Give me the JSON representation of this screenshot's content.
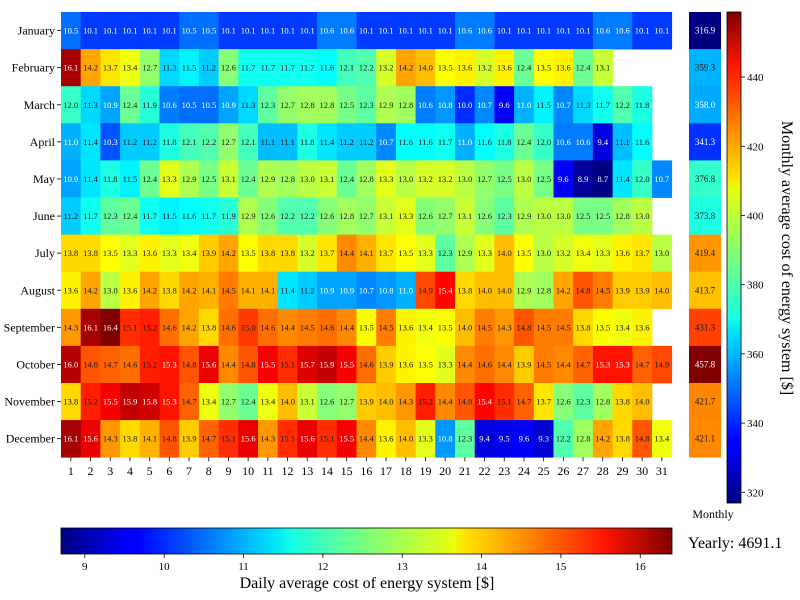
{
  "chart_data": {
    "type": "heatmap",
    "rows": [
      "January",
      "February",
      "March",
      "April",
      "May",
      "June",
      "July",
      "August",
      "September",
      "October",
      "November",
      "December"
    ],
    "columns": [
      "1",
      "2",
      "3",
      "4",
      "5",
      "6",
      "7",
      "8",
      "9",
      "10",
      "11",
      "12",
      "13",
      "14",
      "15",
      "16",
      "17",
      "18",
      "19",
      "20",
      "21",
      "22",
      "23",
      "24",
      "25",
      "26",
      "27",
      "28",
      "29",
      "30",
      "31"
    ],
    "values": [
      [
        10.5,
        10.1,
        10.1,
        10.1,
        10.1,
        10.1,
        10.5,
        10.5,
        10.1,
        10.1,
        10.1,
        10.1,
        10.1,
        10.6,
        10.6,
        10.1,
        10.1,
        10.1,
        10.1,
        10.1,
        10.6,
        10.6,
        10.1,
        10.1,
        10.1,
        10.1,
        10.1,
        10.6,
        10.6,
        10.1,
        10.1
      ],
      [
        16.1,
        14.2,
        13.7,
        13.4,
        12.7,
        11.3,
        11.5,
        11.2,
        12.6,
        11.7,
        11.7,
        11.7,
        11.7,
        11.6,
        12.1,
        12.2,
        13.2,
        14.2,
        14.0,
        13.5,
        13.6,
        13.2,
        13.6,
        12.4,
        13.5,
        13.6,
        12.4,
        13.1,
        null,
        null,
        null
      ],
      [
        12.0,
        11.3,
        10.9,
        12.4,
        11.9,
        10.6,
        10.5,
        10.5,
        10.9,
        11.3,
        12.3,
        12.7,
        12.8,
        12.8,
        12.5,
        12.3,
        12.9,
        12.8,
        10.6,
        10.8,
        10.0,
        10.7,
        9.6,
        11.0,
        11.5,
        10.7,
        11.3,
        11.7,
        12.2,
        11.8,
        null
      ],
      [
        11.0,
        11.4,
        10.3,
        11.2,
        11.2,
        11.8,
        12.1,
        12.2,
        12.7,
        12.1,
        11.1,
        11.1,
        11.8,
        11.4,
        11.2,
        11.2,
        10.7,
        11.6,
        11.6,
        11.7,
        11.0,
        11.6,
        11.8,
        12.4,
        12.0,
        10.6,
        10.6,
        9.4,
        11.1,
        11.6,
        null
      ],
      [
        10.9,
        11.4,
        11.8,
        11.5,
        12.4,
        13.3,
        12.9,
        12.5,
        13.1,
        12.4,
        12.9,
        12.8,
        13.0,
        13.1,
        12.4,
        12.8,
        13.3,
        13.0,
        13.2,
        13.2,
        13.0,
        12.7,
        12.5,
        13.0,
        12.5,
        9.6,
        8.9,
        8.7,
        11.4,
        12.0,
        10.7
      ],
      [
        11.2,
        11.7,
        12.3,
        12.4,
        11.7,
        11.5,
        11.6,
        11.7,
        11.9,
        12.9,
        12.6,
        12.2,
        12.2,
        12.6,
        12.8,
        12.7,
        13.1,
        13.3,
        12.6,
        12.7,
        13.1,
        12.6,
        12.3,
        12.9,
        13.0,
        13.0,
        12.5,
        12.5,
        12.8,
        13.0,
        null
      ],
      [
        13.8,
        13.8,
        13.5,
        13.3,
        13.6,
        13.3,
        13.4,
        13.9,
        14.2,
        13.5,
        13.8,
        13.8,
        13.2,
        13.7,
        14.4,
        14.1,
        13.7,
        13.5,
        13.3,
        12.3,
        12.9,
        13.3,
        14.0,
        13.5,
        13.0,
        13.2,
        13.4,
        13.3,
        13.6,
        13.7,
        13.0
      ],
      [
        13.6,
        14.2,
        13.0,
        13.6,
        14.2,
        13.8,
        14.2,
        14.1,
        14.5,
        14.1,
        14.1,
        11.4,
        11.2,
        10.9,
        10.9,
        10.7,
        10.8,
        11.0,
        14.9,
        15.4,
        13.8,
        14.0,
        14.0,
        12.9,
        12.8,
        14.2,
        14.8,
        14.5,
        13.9,
        13.9,
        14.0
      ],
      [
        14.3,
        16.1,
        16.4,
        15.1,
        15.2,
        14.6,
        14.2,
        13.8,
        14.6,
        15.0,
        14.6,
        14.4,
        14.5,
        14.6,
        14.4,
        13.5,
        14.5,
        13.6,
        13.4,
        13.5,
        14.0,
        14.5,
        14.3,
        14.8,
        14.5,
        14.5,
        13.8,
        13.5,
        13.4,
        13.6,
        null
      ],
      [
        16.0,
        14.8,
        14.7,
        14.6,
        15.2,
        15.3,
        14.8,
        15.6,
        14.4,
        14.8,
        15.5,
        15.1,
        15.7,
        15.9,
        15.5,
        14.6,
        13.9,
        13.6,
        13.5,
        13.3,
        14.4,
        14.6,
        14.4,
        13.9,
        14.5,
        14.4,
        14.7,
        15.3,
        15.3,
        14.7,
        14.9
      ],
      [
        13.8,
        15.2,
        15.5,
        15.9,
        15.8,
        15.3,
        14.7,
        13.4,
        12.7,
        12.4,
        13.4,
        14.0,
        13.1,
        12.6,
        12.7,
        13.9,
        14.0,
        14.3,
        15.2,
        14.4,
        14.8,
        15.4,
        15.1,
        14.7,
        13.7,
        12.6,
        12.3,
        12.8,
        13.8,
        14.0,
        null
      ],
      [
        16.1,
        15.6,
        14.3,
        13.8,
        14.1,
        14.8,
        13.9,
        14.7,
        15.1,
        15.6,
        14.3,
        15.1,
        15.6,
        15.1,
        15.5,
        14.4,
        13.6,
        14.0,
        13.3,
        10.8,
        12.3,
        9.4,
        9.5,
        9.6,
        9.3,
        12.2,
        12.8,
        14.2,
        13.8,
        14.8,
        13.4
      ]
    ],
    "monthly_label": "Monthly",
    "monthly_values": [
      316.9,
      359.3,
      358.0,
      341.3,
      376.8,
      373.8,
      419.4,
      413.7,
      431.3,
      457.8,
      421.7,
      421.1
    ],
    "monthly_labels": [
      "316.9",
      "359.3",
      "358.0",
      "341.3",
      "376.8",
      "373.8",
      "419.4",
      "413.7",
      "431.3",
      "457.8",
      "421.7",
      "421.1"
    ],
    "daily_colorbar": {
      "label": "Daily average cost of energy system [$]",
      "range": [
        8.7,
        16.4
      ],
      "ticks": [
        9,
        10,
        11,
        12,
        13,
        14,
        15,
        16
      ],
      "tick_labels": [
        "9",
        "10",
        "11",
        "12",
        "13",
        "14",
        "15",
        "16"
      ]
    },
    "monthly_colorbar": {
      "label": "Monthly average cost of energy system [$]",
      "range": [
        316.9,
        457.8
      ],
      "ticks": [
        340,
        360,
        380,
        400,
        420,
        440
      ],
      "tick_labels": [
        "340",
        "360",
        "380",
        "400",
        "420",
        "440"
      ],
      "extra_tick": "320"
    },
    "yearly_text": "Yearly: 4691.1",
    "colormap": "jet"
  }
}
